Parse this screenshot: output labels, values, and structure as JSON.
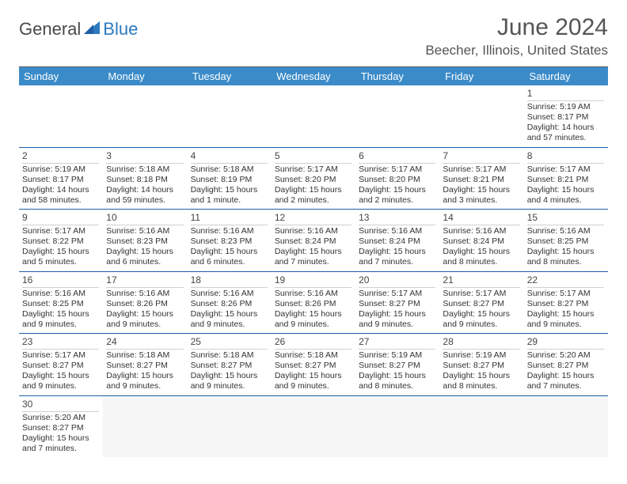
{
  "logo": {
    "text1": "General",
    "text2": "Blue"
  },
  "header": {
    "month_title": "June 2024",
    "location": "Beecher, Illinois, United States"
  },
  "weekdays": [
    "Sunday",
    "Monday",
    "Tuesday",
    "Wednesday",
    "Thursday",
    "Friday",
    "Saturday"
  ],
  "colors": {
    "header_bg": "#3b8bc9",
    "header_text": "#ffffff",
    "row_divider": "#1f5fa8",
    "top_rule": "#5a5a5a",
    "logo_blue": "#2b7abf"
  },
  "weeks": [
    [
      {
        "day": "",
        "sunrise": "",
        "sunset": "",
        "daylight": ""
      },
      {
        "day": "",
        "sunrise": "",
        "sunset": "",
        "daylight": ""
      },
      {
        "day": "",
        "sunrise": "",
        "sunset": "",
        "daylight": ""
      },
      {
        "day": "",
        "sunrise": "",
        "sunset": "",
        "daylight": ""
      },
      {
        "day": "",
        "sunrise": "",
        "sunset": "",
        "daylight": ""
      },
      {
        "day": "",
        "sunrise": "",
        "sunset": "",
        "daylight": ""
      },
      {
        "day": "1",
        "sunrise": "Sunrise: 5:19 AM",
        "sunset": "Sunset: 8:17 PM",
        "daylight": "Daylight: 14 hours and 57 minutes."
      }
    ],
    [
      {
        "day": "2",
        "sunrise": "Sunrise: 5:19 AM",
        "sunset": "Sunset: 8:17 PM",
        "daylight": "Daylight: 14 hours and 58 minutes."
      },
      {
        "day": "3",
        "sunrise": "Sunrise: 5:18 AM",
        "sunset": "Sunset: 8:18 PM",
        "daylight": "Daylight: 14 hours and 59 minutes."
      },
      {
        "day": "4",
        "sunrise": "Sunrise: 5:18 AM",
        "sunset": "Sunset: 8:19 PM",
        "daylight": "Daylight: 15 hours and 1 minute."
      },
      {
        "day": "5",
        "sunrise": "Sunrise: 5:17 AM",
        "sunset": "Sunset: 8:20 PM",
        "daylight": "Daylight: 15 hours and 2 minutes."
      },
      {
        "day": "6",
        "sunrise": "Sunrise: 5:17 AM",
        "sunset": "Sunset: 8:20 PM",
        "daylight": "Daylight: 15 hours and 2 minutes."
      },
      {
        "day": "7",
        "sunrise": "Sunrise: 5:17 AM",
        "sunset": "Sunset: 8:21 PM",
        "daylight": "Daylight: 15 hours and 3 minutes."
      },
      {
        "day": "8",
        "sunrise": "Sunrise: 5:17 AM",
        "sunset": "Sunset: 8:21 PM",
        "daylight": "Daylight: 15 hours and 4 minutes."
      }
    ],
    [
      {
        "day": "9",
        "sunrise": "Sunrise: 5:17 AM",
        "sunset": "Sunset: 8:22 PM",
        "daylight": "Daylight: 15 hours and 5 minutes."
      },
      {
        "day": "10",
        "sunrise": "Sunrise: 5:16 AM",
        "sunset": "Sunset: 8:23 PM",
        "daylight": "Daylight: 15 hours and 6 minutes."
      },
      {
        "day": "11",
        "sunrise": "Sunrise: 5:16 AM",
        "sunset": "Sunset: 8:23 PM",
        "daylight": "Daylight: 15 hours and 6 minutes."
      },
      {
        "day": "12",
        "sunrise": "Sunrise: 5:16 AM",
        "sunset": "Sunset: 8:24 PM",
        "daylight": "Daylight: 15 hours and 7 minutes."
      },
      {
        "day": "13",
        "sunrise": "Sunrise: 5:16 AM",
        "sunset": "Sunset: 8:24 PM",
        "daylight": "Daylight: 15 hours and 7 minutes."
      },
      {
        "day": "14",
        "sunrise": "Sunrise: 5:16 AM",
        "sunset": "Sunset: 8:24 PM",
        "daylight": "Daylight: 15 hours and 8 minutes."
      },
      {
        "day": "15",
        "sunrise": "Sunrise: 5:16 AM",
        "sunset": "Sunset: 8:25 PM",
        "daylight": "Daylight: 15 hours and 8 minutes."
      }
    ],
    [
      {
        "day": "16",
        "sunrise": "Sunrise: 5:16 AM",
        "sunset": "Sunset: 8:25 PM",
        "daylight": "Daylight: 15 hours and 9 minutes."
      },
      {
        "day": "17",
        "sunrise": "Sunrise: 5:16 AM",
        "sunset": "Sunset: 8:26 PM",
        "daylight": "Daylight: 15 hours and 9 minutes."
      },
      {
        "day": "18",
        "sunrise": "Sunrise: 5:16 AM",
        "sunset": "Sunset: 8:26 PM",
        "daylight": "Daylight: 15 hours and 9 minutes."
      },
      {
        "day": "19",
        "sunrise": "Sunrise: 5:16 AM",
        "sunset": "Sunset: 8:26 PM",
        "daylight": "Daylight: 15 hours and 9 minutes."
      },
      {
        "day": "20",
        "sunrise": "Sunrise: 5:17 AM",
        "sunset": "Sunset: 8:27 PM",
        "daylight": "Daylight: 15 hours and 9 minutes."
      },
      {
        "day": "21",
        "sunrise": "Sunrise: 5:17 AM",
        "sunset": "Sunset: 8:27 PM",
        "daylight": "Daylight: 15 hours and 9 minutes."
      },
      {
        "day": "22",
        "sunrise": "Sunrise: 5:17 AM",
        "sunset": "Sunset: 8:27 PM",
        "daylight": "Daylight: 15 hours and 9 minutes."
      }
    ],
    [
      {
        "day": "23",
        "sunrise": "Sunrise: 5:17 AM",
        "sunset": "Sunset: 8:27 PM",
        "daylight": "Daylight: 15 hours and 9 minutes."
      },
      {
        "day": "24",
        "sunrise": "Sunrise: 5:18 AM",
        "sunset": "Sunset: 8:27 PM",
        "daylight": "Daylight: 15 hours and 9 minutes."
      },
      {
        "day": "25",
        "sunrise": "Sunrise: 5:18 AM",
        "sunset": "Sunset: 8:27 PM",
        "daylight": "Daylight: 15 hours and 9 minutes."
      },
      {
        "day": "26",
        "sunrise": "Sunrise: 5:18 AM",
        "sunset": "Sunset: 8:27 PM",
        "daylight": "Daylight: 15 hours and 9 minutes."
      },
      {
        "day": "27",
        "sunrise": "Sunrise: 5:19 AM",
        "sunset": "Sunset: 8:27 PM",
        "daylight": "Daylight: 15 hours and 8 minutes."
      },
      {
        "day": "28",
        "sunrise": "Sunrise: 5:19 AM",
        "sunset": "Sunset: 8:27 PM",
        "daylight": "Daylight: 15 hours and 8 minutes."
      },
      {
        "day": "29",
        "sunrise": "Sunrise: 5:20 AM",
        "sunset": "Sunset: 8:27 PM",
        "daylight": "Daylight: 15 hours and 7 minutes."
      }
    ],
    [
      {
        "day": "30",
        "sunrise": "Sunrise: 5:20 AM",
        "sunset": "Sunset: 8:27 PM",
        "daylight": "Daylight: 15 hours and 7 minutes."
      },
      {
        "day": "",
        "sunrise": "",
        "sunset": "",
        "daylight": ""
      },
      {
        "day": "",
        "sunrise": "",
        "sunset": "",
        "daylight": ""
      },
      {
        "day": "",
        "sunrise": "",
        "sunset": "",
        "daylight": ""
      },
      {
        "day": "",
        "sunrise": "",
        "sunset": "",
        "daylight": ""
      },
      {
        "day": "",
        "sunrise": "",
        "sunset": "",
        "daylight": ""
      },
      {
        "day": "",
        "sunrise": "",
        "sunset": "",
        "daylight": ""
      }
    ]
  ]
}
